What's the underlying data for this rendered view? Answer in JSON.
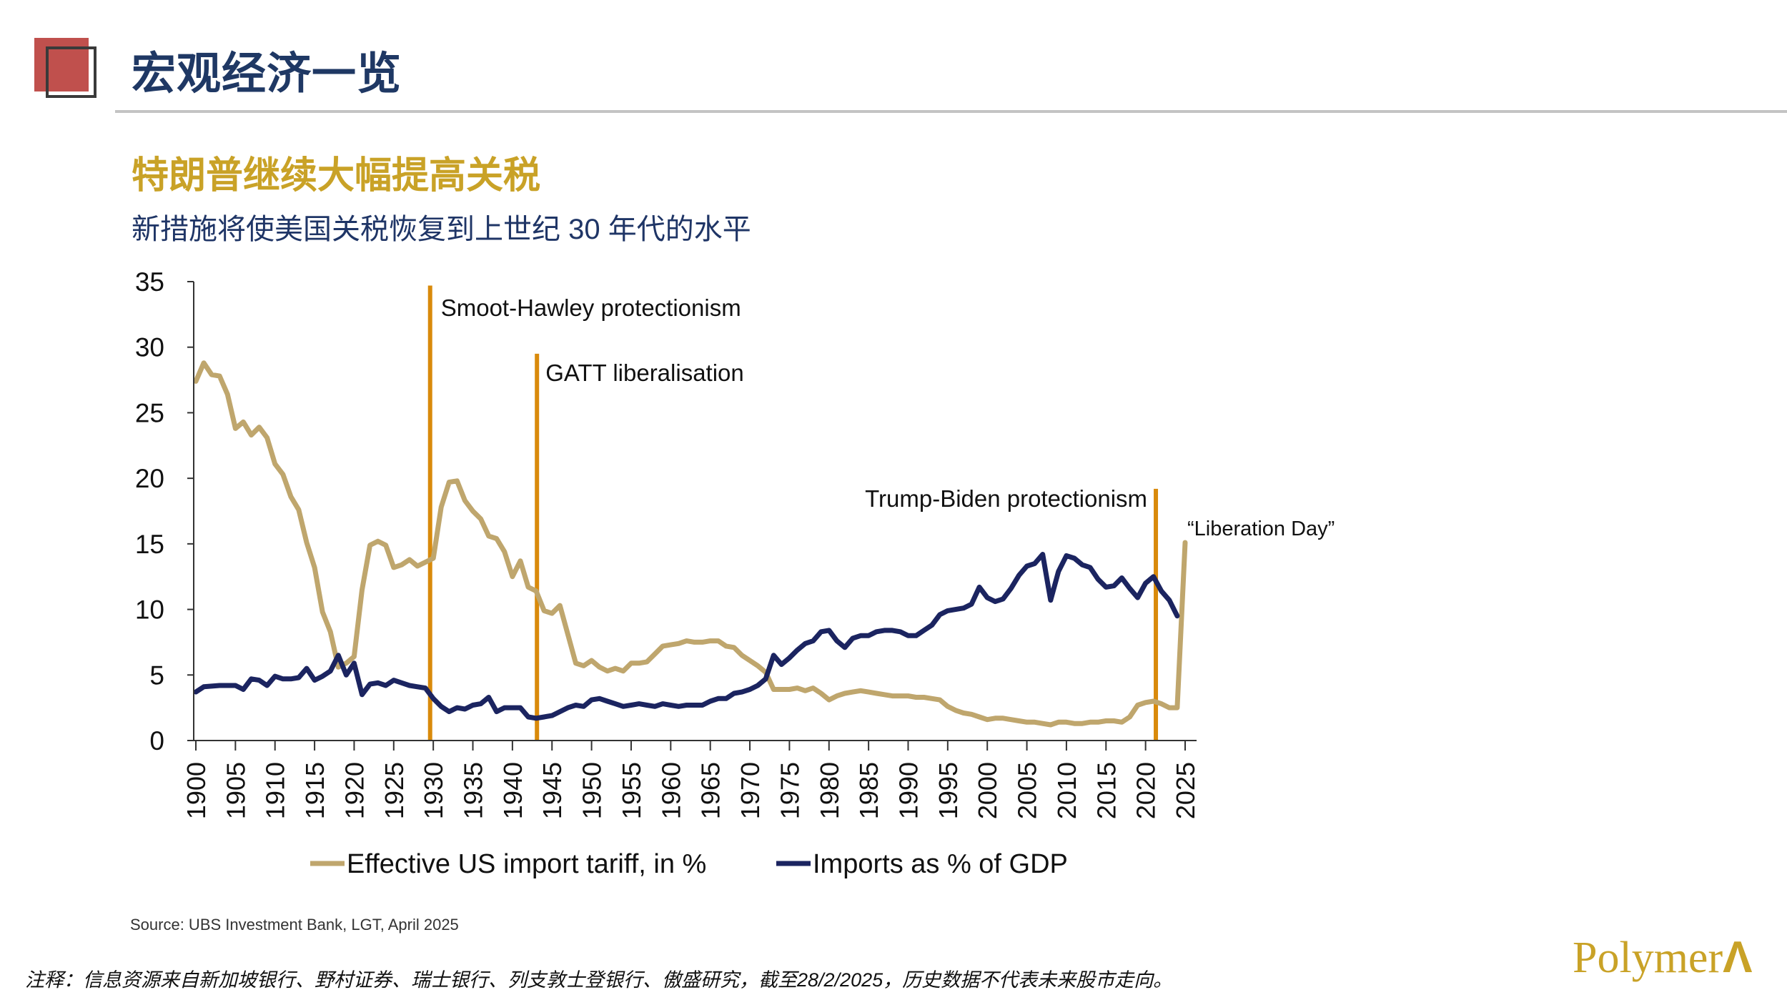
{
  "header": {
    "title": "宏观经济一览"
  },
  "heading": "特朗普继续大幅提高关税",
  "subheading": "新措施将使美国关税恢复到上世纪 30 年代的水平",
  "source": "Source: UBS Investment Bank, LGT, April 2025",
  "footnote": "注释：信息资源来自新加坡银行、野村证券、瑞士银行、列支敦士登银行、傲盛研究，截至28/2/2025，历史数据不代表未来股市走向。",
  "logo": {
    "text": "Polymer",
    "mark": "Λ"
  },
  "colors": {
    "tariff": "#bfa66d",
    "imports": "#1b2460",
    "marker": "#d98a0b",
    "title": "#1f3864",
    "heading": "#c9a227",
    "accent_square": "#c0504d"
  },
  "chart_data": {
    "type": "line",
    "xlim": [
      1900,
      2025
    ],
    "ylim": [
      0,
      35
    ],
    "yticks": [
      "0",
      "5",
      "10",
      "15",
      "20",
      "25",
      "30",
      "35"
    ],
    "xticks": [
      "1900",
      "1905",
      "1910",
      "1915",
      "1920",
      "1925",
      "1930",
      "1935",
      "1940",
      "1945",
      "1950",
      "1955",
      "1960",
      "1965",
      "1970",
      "1975",
      "1980",
      "1985",
      "1990",
      "1995",
      "2000",
      "2005",
      "2010",
      "2015",
      "2020",
      "2025"
    ],
    "legend_position": "bottom",
    "grid": false,
    "series": [
      {
        "name": "Effective US import tariff, in %",
        "x": [
          1900,
          1901,
          1902,
          1903,
          1904,
          1905,
          1906,
          1907,
          1908,
          1909,
          1910,
          1911,
          1912,
          1913,
          1914,
          1915,
          1916,
          1917,
          1918,
          1919,
          1920,
          1921,
          1922,
          1923,
          1924,
          1925,
          1926,
          1927,
          1928,
          1929,
          1930,
          1931,
          1932,
          1933,
          1934,
          1935,
          1936,
          1937,
          1938,
          1939,
          1940,
          1941,
          1942,
          1943,
          1944,
          1945,
          1946,
          1947,
          1948,
          1949,
          1950,
          1951,
          1952,
          1953,
          1954,
          1955,
          1956,
          1957,
          1958,
          1959,
          1960,
          1961,
          1962,
          1963,
          1964,
          1965,
          1966,
          1967,
          1968,
          1969,
          1970,
          1971,
          1972,
          1973,
          1974,
          1975,
          1976,
          1977,
          1978,
          1979,
          1980,
          1981,
          1982,
          1983,
          1984,
          1985,
          1986,
          1987,
          1988,
          1989,
          1990,
          1991,
          1992,
          1993,
          1994,
          1995,
          1996,
          1997,
          1998,
          1999,
          2000,
          2001,
          2002,
          2003,
          2004,
          2005,
          2006,
          2007,
          2008,
          2009,
          2010,
          2011,
          2012,
          2013,
          2014,
          2015,
          2016,
          2017,
          2018,
          2019,
          2020,
          2021,
          2022,
          2023,
          2024,
          2025
        ],
        "y": [
          27.4,
          28.8,
          27.9,
          27.8,
          26.4,
          23.8,
          24.3,
          23.3,
          23.9,
          23.1,
          21.1,
          20.3,
          18.6,
          17.6,
          15.1,
          13.2,
          9.8,
          8.3,
          5.6,
          5.9,
          6.4,
          11.5,
          14.9,
          15.2,
          14.9,
          13.2,
          13.4,
          13.8,
          13.3,
          13.6,
          13.9,
          17.8,
          19.7,
          19.8,
          18.3,
          17.5,
          16.9,
          15.6,
          15.4,
          14.4,
          12.5,
          13.7,
          11.7,
          11.4,
          9.9,
          9.7,
          10.3,
          8.1,
          5.9,
          5.7,
          6.1,
          5.6,
          5.3,
          5.5,
          5.3,
          5.9,
          5.9,
          6.0,
          6.6,
          7.2,
          7.3,
          7.4,
          7.6,
          7.5,
          7.5,
          7.6,
          7.6,
          7.2,
          7.1,
          6.5,
          6.1,
          5.7,
          5.2,
          3.9,
          3.9,
          3.9,
          4.0,
          3.8,
          4.0,
          3.6,
          3.1,
          3.4,
          3.6,
          3.7,
          3.8,
          3.7,
          3.6,
          3.5,
          3.4,
          3.4,
          3.4,
          3.3,
          3.3,
          3.2,
          3.1,
          2.6,
          2.3,
          2.1,
          2.0,
          1.8,
          1.6,
          1.7,
          1.7,
          1.6,
          1.5,
          1.4,
          1.4,
          1.3,
          1.2,
          1.4,
          1.4,
          1.3,
          1.3,
          1.4,
          1.4,
          1.5,
          1.5,
          1.4,
          1.8,
          2.7,
          2.9,
          3.0,
          2.8,
          2.5,
          2.5,
          15.1
        ]
      },
      {
        "name": "Imports as % of GDP",
        "x": [
          1900,
          1901,
          1903,
          1905,
          1906,
          1907,
          1908,
          1909,
          1910,
          1911,
          1912,
          1913,
          1914,
          1915,
          1916,
          1917,
          1918,
          1919,
          1920,
          1921,
          1922,
          1923,
          1924,
          1925,
          1926,
          1927,
          1928,
          1929,
          1930,
          1931,
          1932,
          1933,
          1934,
          1935,
          1936,
          1937,
          1938,
          1939,
          1940,
          1941,
          1942,
          1943,
          1944,
          1945,
          1946,
          1947,
          1948,
          1949,
          1950,
          1951,
          1952,
          1953,
          1954,
          1955,
          1956,
          1957,
          1958,
          1959,
          1960,
          1961,
          1962,
          1963,
          1964,
          1965,
          1966,
          1967,
          1968,
          1969,
          1970,
          1971,
          1972,
          1973,
          1974,
          1975,
          1976,
          1977,
          1978,
          1979,
          1980,
          1981,
          1982,
          1983,
          1984,
          1985,
          1986,
          1987,
          1988,
          1989,
          1990,
          1991,
          1992,
          1993,
          1994,
          1995,
          1996,
          1997,
          1998,
          1999,
          2000,
          2001,
          2002,
          2003,
          2004,
          2005,
          2006,
          2007,
          2008,
          2009,
          2010,
          2011,
          2012,
          2013,
          2014,
          2015,
          2016,
          2017,
          2018,
          2019,
          2020,
          2021,
          2022,
          2023,
          2024
        ],
        "y": [
          3.7,
          4.1,
          4.2,
          4.2,
          3.9,
          4.7,
          4.6,
          4.2,
          4.9,
          4.7,
          4.7,
          4.8,
          5.5,
          4.6,
          4.9,
          5.3,
          6.5,
          5.0,
          5.9,
          3.5,
          4.3,
          4.4,
          4.2,
          4.6,
          4.4,
          4.2,
          4.1,
          4.0,
          3.2,
          2.6,
          2.2,
          2.5,
          2.4,
          2.7,
          2.8,
          3.3,
          2.2,
          2.5,
          2.5,
          2.5,
          1.8,
          1.7,
          1.8,
          1.9,
          2.2,
          2.5,
          2.7,
          2.6,
          3.1,
          3.2,
          3.0,
          2.8,
          2.6,
          2.7,
          2.8,
          2.7,
          2.6,
          2.8,
          2.7,
          2.6,
          2.7,
          2.7,
          2.7,
          3.0,
          3.2,
          3.2,
          3.6,
          3.7,
          3.9,
          4.2,
          4.7,
          6.5,
          5.8,
          6.3,
          6.9,
          7.4,
          7.6,
          8.3,
          8.4,
          7.6,
          7.1,
          7.8,
          8.0,
          8.0,
          8.3,
          8.4,
          8.4,
          8.3,
          8.0,
          8.0,
          8.4,
          8.8,
          9.6,
          9.9,
          10.0,
          10.1,
          10.4,
          11.7,
          10.9,
          10.6,
          10.8,
          11.6,
          12.6,
          13.3,
          13.5,
          14.2,
          10.7,
          12.9,
          14.1,
          13.9,
          13.4,
          13.2,
          12.3,
          11.7,
          11.8,
          12.4,
          11.6,
          10.9,
          12.0,
          12.5,
          11.4,
          10.7,
          9.5
        ]
      }
    ],
    "markers": [
      {
        "label": "Smoot-Hawley protectionism",
        "year": 1929.6,
        "top": 34.7
      },
      {
        "label": "GATT liberalisation",
        "year": 1943.1,
        "top": 29.5
      },
      {
        "label": "Trump-Biden protectionism",
        "year": 2021.3,
        "top": 19.2
      }
    ],
    "annotations": [
      {
        "label": "“Liberation Day”",
        "year": 2025
      }
    ]
  }
}
